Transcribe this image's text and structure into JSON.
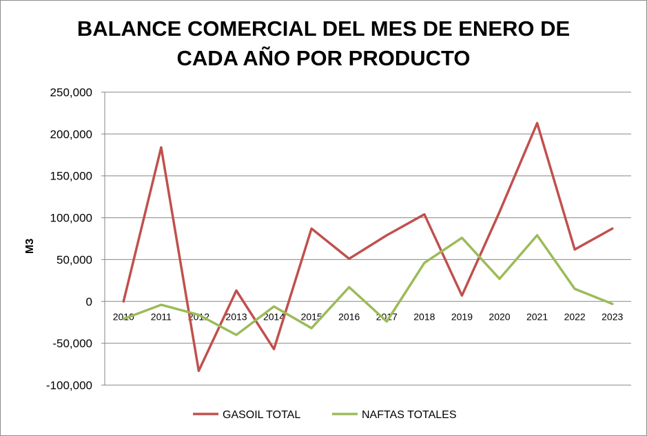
{
  "chart_data": {
    "type": "line",
    "title_lines": [
      "BALANCE COMERCIAL DEL MES DE ENERO DE",
      "CADA AÑO POR PRODUCTO"
    ],
    "ylabel": "M3",
    "xlabel": "",
    "categories": [
      "2010",
      "2011",
      "2012",
      "2013",
      "2014",
      "2015",
      "2016",
      "2017",
      "2018",
      "2019",
      "2020",
      "2021",
      "2022",
      "2023"
    ],
    "ylim": [
      -100000,
      250000
    ],
    "yticks": [
      250000,
      200000,
      150000,
      100000,
      50000,
      0,
      -50000,
      -100000
    ],
    "ytick_labels": [
      "250,000",
      "200,000",
      "150,000",
      "100,000",
      "50,000",
      "0",
      "-50,000",
      "-100,000"
    ],
    "grid": true,
    "legend_position": "bottom",
    "series": [
      {
        "name": "GASOIL TOTAL",
        "color": "#c0504d",
        "values": [
          0,
          184000,
          -83000,
          13000,
          -57000,
          87000,
          51000,
          79000,
          104000,
          7000,
          107000,
          213000,
          62000,
          87000
        ]
      },
      {
        "name": "NAFTAS TOTALES",
        "color": "#9bbb59",
        "values": [
          -21000,
          -4000,
          -16000,
          -40000,
          -6000,
          -32000,
          17000,
          -24000,
          46000,
          76000,
          27000,
          79000,
          15000,
          -3000
        ]
      }
    ]
  }
}
